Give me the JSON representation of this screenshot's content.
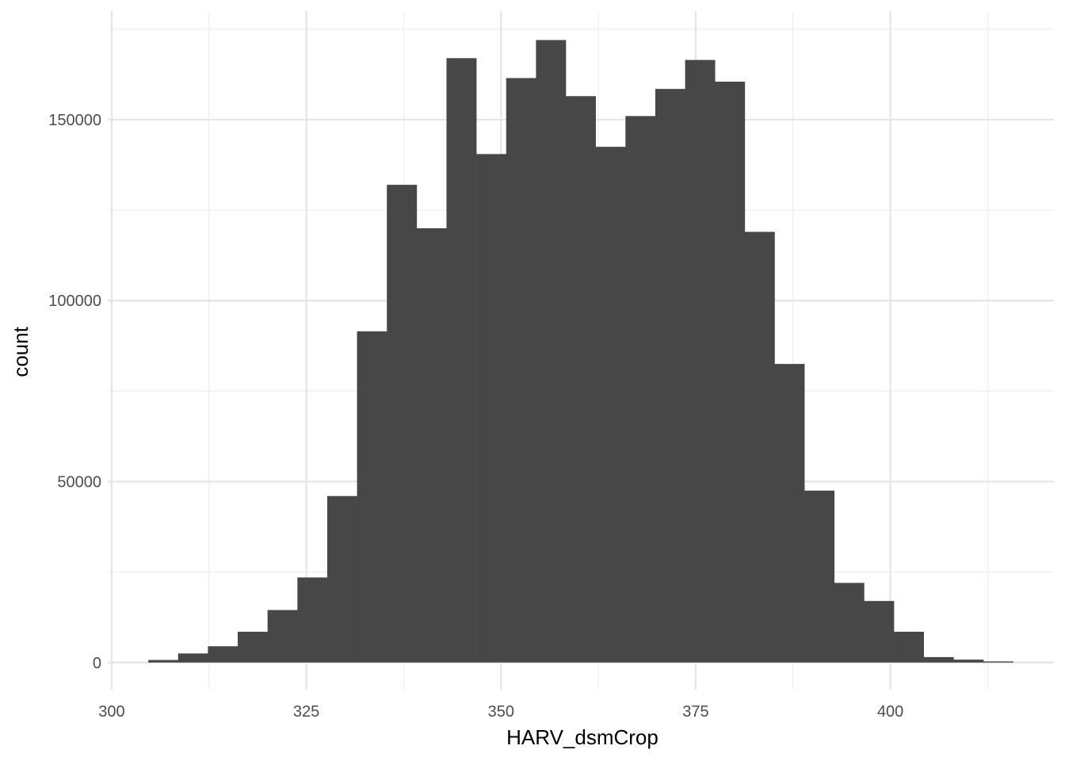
{
  "chart_data": {
    "type": "bar",
    "subtype": "histogram",
    "title": "",
    "xlabel": "HARV_dsmCrop",
    "ylabel": "count",
    "xlim": [
      299.5,
      421
    ],
    "ylim": [
      -7500,
      180000
    ],
    "x_ticks": [
      300,
      325,
      350,
      375,
      400
    ],
    "x_tick_labels": [
      "300",
      "325",
      "350",
      "375",
      "400"
    ],
    "y_ticks": [
      0,
      50000,
      100000,
      150000
    ],
    "y_tick_labels": [
      "0",
      "50000",
      "100000",
      "150000"
    ],
    "grid": true,
    "legend": "none",
    "bin_width": 3.83,
    "bin_start": 304.7,
    "values": [
      700,
      2500,
      4500,
      8500,
      14500,
      23500,
      46000,
      91500,
      132000,
      120000,
      167000,
      140500,
      161500,
      172000,
      156500,
      142500,
      151000,
      158500,
      166500,
      160500,
      119000,
      82500,
      47500,
      22000,
      17000,
      8500,
      1500,
      800,
      300
    ],
    "bar_color": "#474747"
  }
}
